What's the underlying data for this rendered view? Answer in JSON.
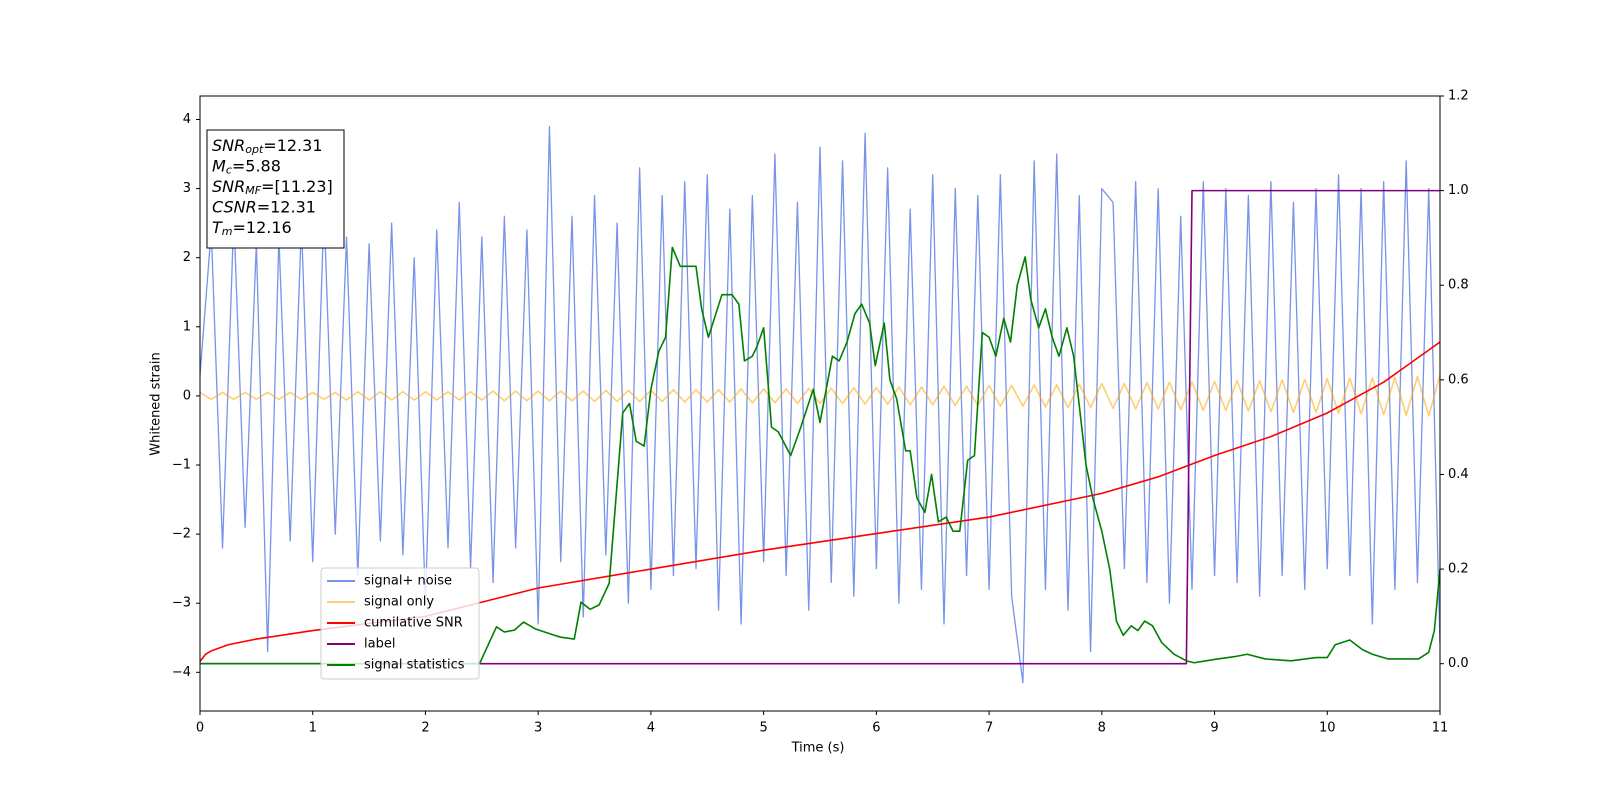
{
  "chart_data": {
    "type": "line",
    "xlabel": "Time (s)",
    "ylabel": "Whitened strain",
    "xlim": [
      0,
      11
    ],
    "xticks": [
      0,
      1,
      2,
      3,
      4,
      5,
      6,
      7,
      8,
      9,
      10,
      11
    ],
    "ylim": [
      -4.56,
      4.34
    ],
    "yticks": [
      -4,
      -3,
      -2,
      -1,
      0,
      1,
      2,
      3,
      4
    ],
    "y2lim": [
      -0.1,
      1.2
    ],
    "y2ticks": [
      {
        "value": 0,
        "label": "0.0"
      },
      {
        "value": 0.2,
        "label": "0.2"
      },
      {
        "value": 0.4,
        "label": "0.4"
      },
      {
        "value": 0.6,
        "label": "0.6"
      },
      {
        "value": 0.8,
        "label": "0.8"
      },
      {
        "value": 1.0,
        "label": "1.0"
      },
      {
        "value": 1.2,
        "label": "1.2"
      }
    ],
    "legend": "lower left",
    "annotations": [
      {
        "text": "SNR",
        "sub": "opt",
        "value": "=12.31"
      },
      {
        "text": "M",
        "sub": "c",
        "value": "=5.88"
      },
      {
        "text": "SNR",
        "sub": "MF",
        "value": "=[11.23]"
      },
      {
        "text": "CSNR",
        "value": "=12.31"
      },
      {
        "text": "T",
        "sub": "m",
        "value": "=12.16"
      }
    ],
    "x": [
      0,
      0.1,
      0.2,
      0.3,
      0.4,
      0.5,
      0.6,
      0.7,
      0.8,
      0.9,
      1,
      1.1,
      1.2,
      1.3,
      1.4,
      1.5,
      1.6,
      1.7,
      1.8,
      1.9,
      2,
      2.1,
      2.2,
      2.3,
      2.4,
      2.5,
      2.6,
      2.7,
      2.8,
      2.9,
      3,
      3.1,
      3.2,
      3.3,
      3.4,
      3.5,
      3.6,
      3.7,
      3.8,
      3.9,
      4,
      4.1,
      4.2,
      4.3,
      4.4,
      4.5,
      4.6,
      4.7,
      4.8,
      4.9,
      5,
      5.1,
      5.2,
      5.3,
      5.4,
      5.5,
      5.6,
      5.7,
      5.8,
      5.9,
      6,
      6.1,
      6.2,
      6.3,
      6.4,
      6.5,
      6.6,
      6.7,
      6.8,
      6.9,
      7,
      7.1,
      7.2,
      7.3,
      7.4,
      7.5,
      7.6,
      7.7,
      7.8,
      7.9,
      8,
      8.1,
      8.2,
      8.3,
      8.4,
      8.5,
      8.6,
      8.7,
      8.8,
      8.9,
      9,
      9.1,
      9.2,
      9.3,
      9.4,
      9.5,
      9.6,
      9.7,
      9.8,
      9.9,
      10,
      10.1,
      10.2,
      10.3,
      10.4,
      10.5,
      10.6,
      10.7,
      10.8,
      10.9,
      11
    ],
    "series": [
      {
        "name": "signal+ noise",
        "color": "#7893e8",
        "values": [
          0.3,
          2.4,
          -2.2,
          2.6,
          -1.9,
          2.2,
          -3.7,
          2.3,
          -2.1,
          2.5,
          -2.4,
          2.7,
          -2.0,
          2.3,
          -2.6,
          2.2,
          -2.1,
          2.5,
          -2.3,
          2.0,
          -3.0,
          2.4,
          -2.2,
          2.8,
          -2.5,
          2.3,
          -2.7,
          2.6,
          -2.2,
          2.4,
          -3.3,
          3.9,
          -2.4,
          2.6,
          -3.2,
          2.9,
          -2.3,
          2.5,
          -3.0,
          3.3,
          -2.8,
          2.9,
          -2.6,
          3.1,
          -2.5,
          3.2,
          -3.1,
          2.7,
          -3.3,
          2.9,
          -2.4,
          3.5,
          -2.6,
          2.8,
          -3.1,
          3.6,
          -2.7,
          3.4,
          -2.9,
          3.8,
          -2.5,
          3.3,
          -3.0,
          2.7,
          -2.8,
          3.2,
          -3.3,
          3.0,
          -2.6,
          2.9,
          -2.8,
          3.2,
          -2.9,
          -4.15,
          3.4,
          -2.8,
          3.5,
          -3.1,
          2.9,
          -3.7,
          3.0,
          2.8,
          -2.5,
          3.1,
          -2.7,
          3.0,
          -3.0,
          2.6,
          -2.8,
          3.1,
          -2.6,
          3.0,
          -2.7,
          2.9,
          -2.9,
          3.1,
          -2.6,
          2.8,
          -2.8,
          3.0,
          -2.5,
          3.2,
          -2.6,
          3.0,
          -3.3,
          3.1,
          -2.8,
          3.4,
          -2.7,
          3.0,
          -3.6
        ]
      },
      {
        "name": "signal only",
        "color": "#ffa500",
        "values": [
          0.05,
          -0.05,
          0.05,
          -0.05,
          0.05,
          -0.05,
          0.05,
          -0.05,
          0.05,
          -0.05,
          0.05,
          -0.05,
          0.05,
          -0.06,
          0.06,
          -0.06,
          0.06,
          -0.06,
          0.06,
          -0.06,
          0.06,
          -0.06,
          0.06,
          -0.06,
          0.06,
          -0.06,
          0.07,
          -0.07,
          0.07,
          -0.07,
          0.07,
          -0.07,
          0.07,
          -0.07,
          0.07,
          -0.08,
          0.08,
          -0.08,
          0.08,
          -0.08,
          0.08,
          -0.08,
          0.09,
          -0.09,
          0.09,
          -0.09,
          0.09,
          -0.09,
          0.1,
          -0.1,
          0.1,
          -0.1,
          0.1,
          -0.11,
          0.11,
          -0.11,
          0.11,
          -0.11,
          0.12,
          -0.12,
          0.12,
          -0.12,
          0.13,
          -0.13,
          0.13,
          -0.13,
          0.14,
          -0.14,
          0.14,
          -0.14,
          0.15,
          -0.15,
          0.15,
          -0.15,
          0.16,
          -0.16,
          0.16,
          -0.17,
          0.17,
          -0.17,
          0.18,
          -0.18,
          0.18,
          -0.19,
          0.19,
          -0.19,
          0.2,
          -0.2,
          0.2,
          -0.21,
          0.21,
          -0.21,
          0.22,
          -0.22,
          0.22,
          -0.23,
          0.23,
          -0.24,
          0.24,
          -0.24,
          0.25,
          -0.25,
          0.26,
          -0.26,
          0.26,
          -0.27,
          0.27,
          -0.28,
          0.28,
          -0.29,
          0.3
        ]
      },
      {
        "name": "cumilative SNR",
        "color": "#ff0000",
        "axis": "y2",
        "x": [
          0,
          0.05,
          0.1,
          0.25,
          0.5,
          1,
          1.5,
          2,
          3,
          4,
          5,
          6,
          7,
          8,
          8.5,
          9,
          9.5,
          10,
          10.5,
          11
        ],
        "values": [
          0.005,
          0.02,
          0.027,
          0.04,
          0.052,
          0.07,
          0.085,
          0.1,
          0.16,
          0.2,
          0.24,
          0.275,
          0.31,
          0.36,
          0.395,
          0.44,
          0.48,
          0.53,
          0.595,
          0.68
        ]
      },
      {
        "name": "label",
        "color": "#800080",
        "axis": "y2",
        "x": [
          0,
          8.75,
          8.8,
          11
        ],
        "values": [
          0,
          0,
          1,
          1
        ]
      },
      {
        "name": "signal statistics",
        "color": "#008000",
        "axis": "y2",
        "x": [
          0,
          2.48,
          2.63,
          2.7,
          2.79,
          2.87,
          2.98,
          3.12,
          3.2,
          3.32,
          3.38,
          3.46,
          3.54,
          3.63,
          3.75,
          3.81,
          3.87,
          3.94,
          4.0,
          4.07,
          4.13,
          4.19,
          4.26,
          4.33,
          4.4,
          4.45,
          4.51,
          4.63,
          4.72,
          4.78,
          4.83,
          4.9,
          4.94,
          5.0,
          5.07,
          5.13,
          5.24,
          5.33,
          5.44,
          5.5,
          5.61,
          5.67,
          5.74,
          5.81,
          5.87,
          5.94,
          5.99,
          6.07,
          6.12,
          6.18,
          6.26,
          6.3,
          6.36,
          6.43,
          6.49,
          6.55,
          6.62,
          6.68,
          6.74,
          6.81,
          6.87,
          6.94,
          7.0,
          7.06,
          7.13,
          7.19,
          7.25,
          7.32,
          7.37,
          7.44,
          7.5,
          7.56,
          7.62,
          7.69,
          7.75,
          7.86,
          7.92,
          8.0,
          8.07,
          8.13,
          8.19,
          8.26,
          8.32,
          8.38,
          8.45,
          8.53,
          8.64,
          8.75,
          8.82,
          9.0,
          9.18,
          9.29,
          9.45,
          9.68,
          9.9,
          10.0,
          10.07,
          10.2,
          10.31,
          10.4,
          10.54,
          10.81,
          10.9,
          10.95,
          11.0
        ],
        "values": [
          0.0,
          0.0,
          0.078,
          0.067,
          0.071,
          0.088,
          0.073,
          0.062,
          0.056,
          0.052,
          0.13,
          0.115,
          0.124,
          0.17,
          0.53,
          0.55,
          0.47,
          0.46,
          0.58,
          0.66,
          0.69,
          0.88,
          0.84,
          0.84,
          0.84,
          0.75,
          0.69,
          0.78,
          0.78,
          0.76,
          0.64,
          0.65,
          0.67,
          0.71,
          0.5,
          0.49,
          0.44,
          0.5,
          0.58,
          0.51,
          0.65,
          0.64,
          0.68,
          0.74,
          0.76,
          0.72,
          0.63,
          0.72,
          0.6,
          0.56,
          0.45,
          0.45,
          0.35,
          0.32,
          0.4,
          0.3,
          0.31,
          0.28,
          0.28,
          0.43,
          0.44,
          0.7,
          0.69,
          0.65,
          0.73,
          0.68,
          0.8,
          0.86,
          0.77,
          0.71,
          0.75,
          0.69,
          0.65,
          0.71,
          0.65,
          0.42,
          0.35,
          0.28,
          0.2,
          0.09,
          0.06,
          0.08,
          0.07,
          0.09,
          0.08,
          0.045,
          0.02,
          0.006,
          0.002,
          0.009,
          0.015,
          0.02,
          0.01,
          0.006,
          0.013,
          0.013,
          0.04,
          0.05,
          0.03,
          0.02,
          0.01,
          0.01,
          0.024,
          0.07,
          0.2
        ]
      }
    ]
  }
}
